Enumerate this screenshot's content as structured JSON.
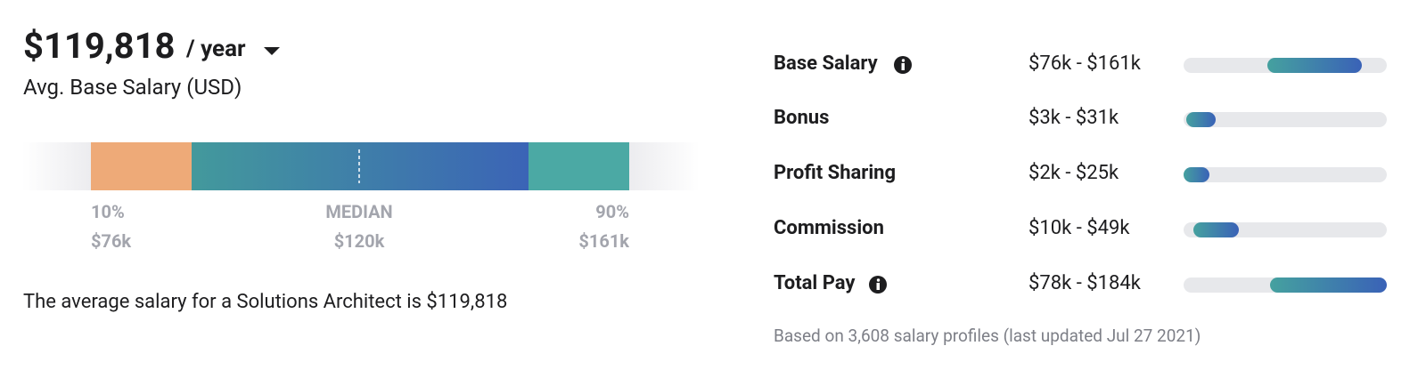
{
  "header": {
    "amount": "$119,818",
    "period": "/ year",
    "subtitle": "Avg. Base Salary (USD)"
  },
  "range": {
    "labels": [
      {
        "percentile": "10%",
        "value": "$76k"
      },
      {
        "percentile": "MEDIAN",
        "value": "$120k"
      },
      {
        "percentile": "90%",
        "value": "$161k"
      }
    ]
  },
  "summary": "The average salary for a Solutions Architect is $119,818",
  "pay_rows": [
    {
      "label": "Base Salary",
      "range": "$76k - $161k"
    },
    {
      "label": "Bonus",
      "range": "$3k - $31k"
    },
    {
      "label": "Profit Sharing",
      "range": "$2k - $25k"
    },
    {
      "label": "Commission",
      "range": "$10k - $49k"
    },
    {
      "label": "Total Pay",
      "range": "$78k - $184k"
    }
  ],
  "footnote": "Based on 3,608 salary profiles (last updated Jul 27 2021)"
}
